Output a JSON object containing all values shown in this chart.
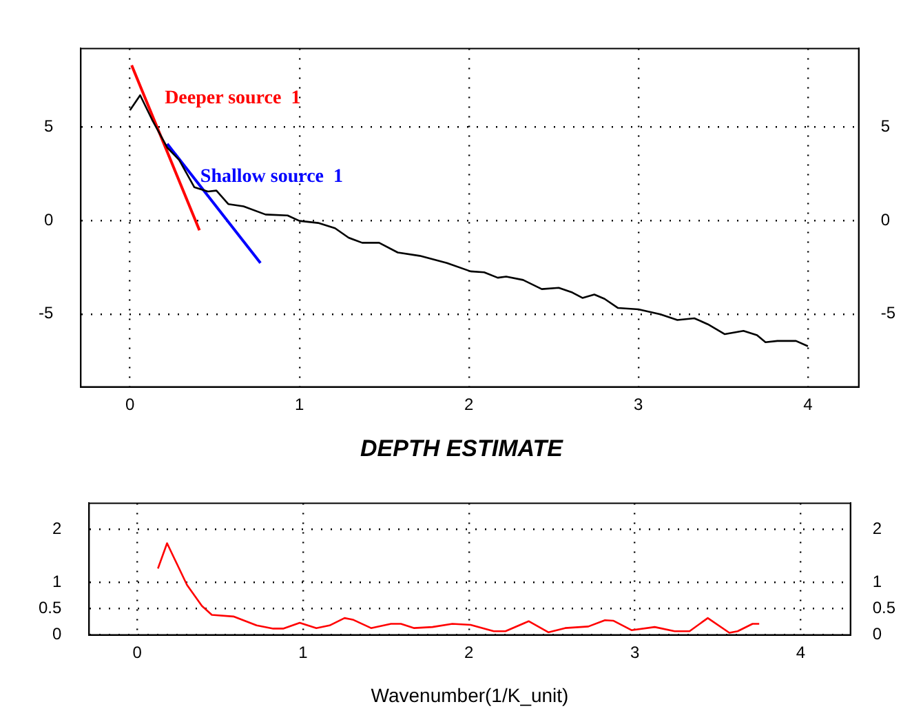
{
  "chart_data": [
    {
      "type": "line",
      "xlim": [
        -0.29,
        4.3
      ],
      "xticks": [
        0,
        1,
        2,
        3,
        4
      ],
      "ylim": [
        -8.9,
        9.2
      ],
      "yticks": [
        -5,
        0,
        5
      ],
      "y2lim": [
        -8.9,
        9.2
      ],
      "y2ticks": [
        -5,
        0,
        5
      ],
      "grid": true,
      "legend": false,
      "series": [
        {
          "color": "#000000",
          "x": [
            0.0,
            0.06,
            0.13,
            0.22,
            0.29,
            0.38,
            0.46,
            0.51,
            0.58,
            0.67,
            0.8,
            0.93,
            1.0,
            1.11,
            1.21,
            1.29,
            1.37,
            1.47,
            1.58,
            1.71,
            1.87,
            2.01,
            2.09,
            2.17,
            2.22,
            2.32,
            2.43,
            2.53,
            2.61,
            2.67,
            2.74,
            2.8,
            2.88,
            3.0,
            3.13,
            3.23,
            3.33,
            3.41,
            3.51,
            3.62,
            3.7,
            3.75,
            3.82,
            3.93,
            4.0
          ],
          "values": [
            5.9,
            6.7,
            5.4,
            3.9,
            3.24,
            1.78,
            1.55,
            1.6,
            0.88,
            0.76,
            0.32,
            0.27,
            -0.02,
            -0.13,
            -0.41,
            -0.92,
            -1.19,
            -1.19,
            -1.71,
            -1.89,
            -2.27,
            -2.72,
            -2.77,
            -3.06,
            -3.0,
            -3.18,
            -3.67,
            -3.6,
            -3.85,
            -4.14,
            -3.96,
            -4.19,
            -4.68,
            -4.75,
            -5.02,
            -5.32,
            -5.23,
            -5.55,
            -6.08,
            -5.9,
            -6.13,
            -6.51,
            -6.44,
            -6.44,
            -6.72
          ]
        },
        {
          "name": "Deeper source  1",
          "color": "#ff0000",
          "x": [
            0.01,
            0.41
          ],
          "values": [
            8.3,
            -0.52
          ]
        },
        {
          "name": "Shallow source  1",
          "color": "#0000ff",
          "x": [
            0.22,
            0.77
          ],
          "values": [
            4.1,
            -2.27
          ]
        }
      ]
    },
    {
      "type": "line",
      "title": "DEPTH ESTIMATE",
      "xlabel": "Wavenumber(1/K_unit)",
      "xlim": [
        -0.29,
        4.3
      ],
      "xticks": [
        0,
        1,
        2,
        3,
        4
      ],
      "ylim": [
        0,
        2.5
      ],
      "yticks": [
        0,
        0.5,
        1,
        2
      ],
      "y2lim": [
        0,
        2.5
      ],
      "y2ticks": [
        0,
        0.5,
        1,
        2
      ],
      "grid": true,
      "legend": false,
      "series": [
        {
          "color": "#ff0000",
          "x": [
            0.125,
            0.18,
            0.3,
            0.39,
            0.45,
            0.58,
            0.72,
            0.82,
            0.88,
            0.98,
            1.08,
            1.16,
            1.25,
            1.3,
            1.41,
            1.53,
            1.59,
            1.67,
            1.78,
            1.9,
            2.01,
            2.15,
            2.22,
            2.36,
            2.48,
            2.58,
            2.72,
            2.82,
            2.87,
            2.98,
            3.12,
            3.24,
            3.33,
            3.44,
            3.57,
            3.62,
            3.71,
            3.75
          ],
          "values": [
            1.26,
            1.74,
            0.95,
            0.55,
            0.38,
            0.35,
            0.18,
            0.12,
            0.12,
            0.23,
            0.13,
            0.18,
            0.32,
            0.29,
            0.13,
            0.21,
            0.21,
            0.13,
            0.15,
            0.21,
            0.19,
            0.07,
            0.07,
            0.26,
            0.05,
            0.13,
            0.16,
            0.28,
            0.27,
            0.09,
            0.15,
            0.07,
            0.07,
            0.32,
            0.04,
            0.07,
            0.21,
            0.21
          ]
        }
      ]
    }
  ]
}
